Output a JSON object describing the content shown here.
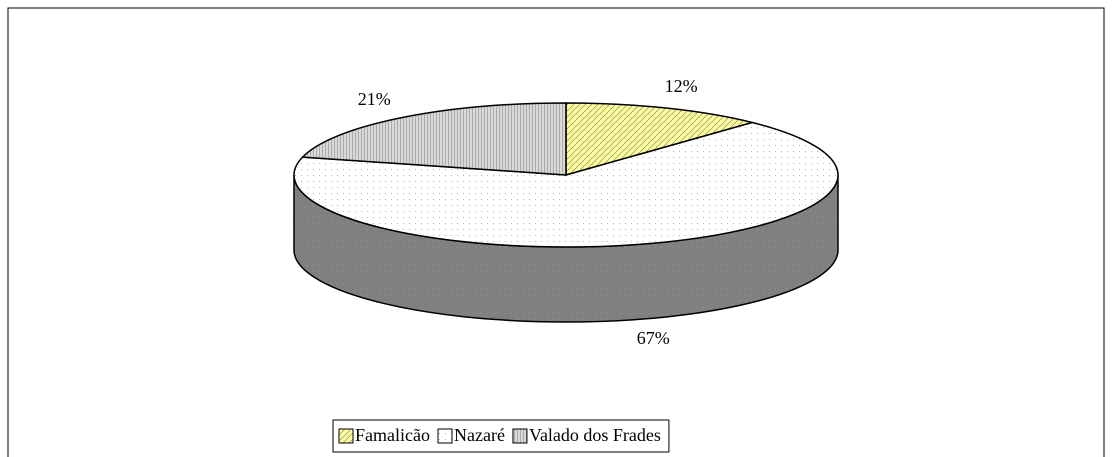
{
  "chart_data": {
    "type": "pie",
    "categories": [
      "Famalicão",
      "Nazaré",
      "Valado dos Frades"
    ],
    "values": [
      12,
      67,
      21
    ],
    "value_labels": [
      "12%",
      "67%",
      "21%"
    ],
    "colors": [
      "#ffff99",
      "#ffffff",
      "#d9d9d9"
    ],
    "legend": "bottom"
  }
}
